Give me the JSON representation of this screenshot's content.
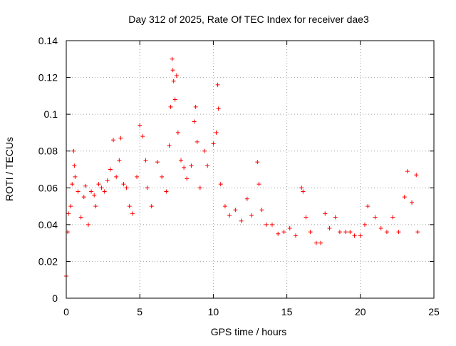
{
  "chart_data": {
    "type": "scatter",
    "title": "Day 312 of 2025, Rate Of TEC Index for receiver dae3",
    "xlabel": "GPS time / hours",
    "ylabel": "ROTI / TECUs",
    "xlim": [
      0,
      25
    ],
    "ylim": [
      0,
      0.14
    ],
    "x_ticks": [
      "0",
      "5",
      "10",
      "15",
      "20",
      "25"
    ],
    "y_ticks": [
      "0",
      "0.02",
      "0.04",
      "0.06",
      "0.08",
      "0.1",
      "0.12",
      "0.14"
    ],
    "grid": true,
    "marker": "+",
    "series": [
      {
        "color": "#ff0000",
        "points": [
          [
            0.0,
            0.012
          ],
          [
            0.1,
            0.036
          ],
          [
            0.15,
            0.046
          ],
          [
            0.3,
            0.05
          ],
          [
            0.4,
            0.062
          ],
          [
            0.5,
            0.08
          ],
          [
            0.55,
            0.072
          ],
          [
            0.6,
            0.066
          ],
          [
            0.8,
            0.058
          ],
          [
            1.0,
            0.044
          ],
          [
            1.2,
            0.055
          ],
          [
            1.3,
            0.061
          ],
          [
            1.5,
            0.04
          ],
          [
            1.7,
            0.058
          ],
          [
            1.9,
            0.056
          ],
          [
            2.0,
            0.05
          ],
          [
            2.2,
            0.062
          ],
          [
            2.4,
            0.06
          ],
          [
            2.6,
            0.058
          ],
          [
            2.8,
            0.064
          ],
          [
            3.0,
            0.07
          ],
          [
            3.2,
            0.086
          ],
          [
            3.4,
            0.066
          ],
          [
            3.6,
            0.075
          ],
          [
            3.7,
            0.087
          ],
          [
            3.9,
            0.062
          ],
          [
            4.1,
            0.06
          ],
          [
            4.3,
            0.05
          ],
          [
            4.5,
            0.046
          ],
          [
            4.8,
            0.066
          ],
          [
            5.0,
            0.094
          ],
          [
            5.2,
            0.088
          ],
          [
            5.4,
            0.075
          ],
          [
            5.5,
            0.06
          ],
          [
            5.8,
            0.05
          ],
          [
            6.2,
            0.074
          ],
          [
            6.5,
            0.066
          ],
          [
            6.8,
            0.058
          ],
          [
            7.0,
            0.083
          ],
          [
            7.1,
            0.104
          ],
          [
            7.2,
            0.13
          ],
          [
            7.25,
            0.124
          ],
          [
            7.3,
            0.118
          ],
          [
            7.4,
            0.108
          ],
          [
            7.5,
            0.121
          ],
          [
            7.6,
            0.09
          ],
          [
            7.8,
            0.075
          ],
          [
            8.0,
            0.071
          ],
          [
            8.2,
            0.065
          ],
          [
            8.5,
            0.072
          ],
          [
            8.7,
            0.096
          ],
          [
            8.8,
            0.104
          ],
          [
            8.9,
            0.085
          ],
          [
            9.1,
            0.06
          ],
          [
            9.4,
            0.08
          ],
          [
            9.6,
            0.072
          ],
          [
            10.0,
            0.084
          ],
          [
            10.2,
            0.09
          ],
          [
            10.3,
            0.116
          ],
          [
            10.35,
            0.103
          ],
          [
            10.5,
            0.062
          ],
          [
            10.8,
            0.05
          ],
          [
            11.1,
            0.045
          ],
          [
            11.5,
            0.048
          ],
          [
            11.9,
            0.042
          ],
          [
            12.3,
            0.054
          ],
          [
            12.6,
            0.045
          ],
          [
            13.0,
            0.074
          ],
          [
            13.1,
            0.062
          ],
          [
            13.3,
            0.048
          ],
          [
            13.6,
            0.04
          ],
          [
            14.0,
            0.04
          ],
          [
            14.4,
            0.035
          ],
          [
            14.8,
            0.036
          ],
          [
            15.2,
            0.038
          ],
          [
            15.6,
            0.034
          ],
          [
            16.0,
            0.06
          ],
          [
            16.1,
            0.058
          ],
          [
            16.3,
            0.044
          ],
          [
            16.6,
            0.036
          ],
          [
            17.0,
            0.03
          ],
          [
            17.3,
            0.03
          ],
          [
            17.6,
            0.046
          ],
          [
            17.9,
            0.038
          ],
          [
            18.3,
            0.044
          ],
          [
            18.6,
            0.036
          ],
          [
            19.0,
            0.036
          ],
          [
            19.3,
            0.036
          ],
          [
            19.6,
            0.034
          ],
          [
            20.0,
            0.034
          ],
          [
            20.3,
            0.04
          ],
          [
            20.5,
            0.05
          ],
          [
            21.0,
            0.044
          ],
          [
            21.4,
            0.038
          ],
          [
            21.8,
            0.036
          ],
          [
            22.2,
            0.044
          ],
          [
            22.6,
            0.036
          ],
          [
            23.0,
            0.055
          ],
          [
            23.2,
            0.069
          ],
          [
            23.5,
            0.052
          ],
          [
            23.8,
            0.067
          ],
          [
            23.9,
            0.036
          ]
        ]
      }
    ]
  }
}
